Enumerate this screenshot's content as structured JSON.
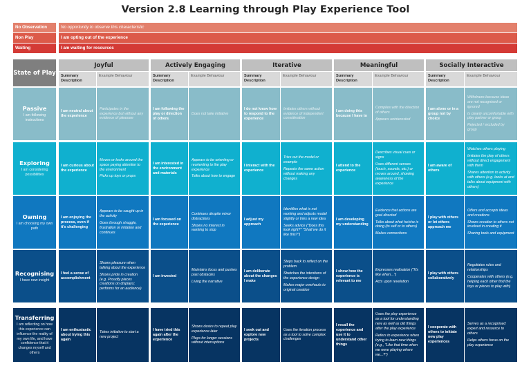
{
  "title": "Version 2.8 Learning through Play Experience Tool",
  "legend": [
    {
      "label": "No Observation",
      "text": "No opportunity to observe this characteristic",
      "color": "#e3806c",
      "italic": true
    },
    {
      "label": "Non Play",
      "text": "I am opting out of the experience",
      "color": "#dc5a49",
      "italic": false
    },
    {
      "label": "Waiting",
      "text": "I am waiting for resources",
      "color": "#d43a35",
      "italic": false
    }
  ],
  "table": {
    "state_header": "State of Play",
    "summary_header": "Summary Description",
    "example_header": "Example Behaviour",
    "columns": [
      "Joyful",
      "Actively Engaging",
      "Iterative",
      "Meaningful",
      "Socially Interactive"
    ],
    "rows": [
      {
        "state": "Passive",
        "state_desc": "I am following instructions",
        "color": "#89bcc9",
        "cells": [
          {
            "summary": "I am neutral about the experience",
            "examples": [
              "Participates in the experience but without any evidence of pleasure"
            ]
          },
          {
            "summary": "I am following the play or direction of others",
            "examples": [
              "Does not take initiative"
            ]
          },
          {
            "summary": "I do not know how to respond to the experience",
            "examples": [
              "Imitates others without evidence of independent consideration"
            ]
          },
          {
            "summary": "I am doing this because I have to",
            "examples": [
              "Complies with the direction of others",
              "Appears uninterested"
            ]
          },
          {
            "summary": "I am alone or in a group not by choice",
            "examples": [
              "Withdraws because ideas are not recognised or ignored",
              "Is clearly uncomfortable with play partner or group",
              "Rejected / excluded by group"
            ]
          }
        ]
      },
      {
        "state": "Exploring",
        "state_desc": "I am considering possibilities",
        "color": "#10b0cf",
        "cells": [
          {
            "summary": "I am curious about the experience",
            "examples": [
              "Moves or looks around the space paying attention to the environment",
              "Picks up toys or props"
            ]
          },
          {
            "summary": "I am interested in the environment and materials",
            "examples": [
              "Appears to be orienting or reorienting to the play experience",
              "Talks about how to engage"
            ]
          },
          {
            "summary": "I interact with the experience",
            "examples": [
              "Tries out the model or example",
              "Repeats the same action without making any changes"
            ]
          },
          {
            "summary": "I attend to the experience",
            "examples": [
              "Describes visual cues or signs",
              "Uses different senses (touch, sounds, etc.) or moves around, showing awareness of the experience"
            ]
          },
          {
            "summary": "I am aware of others",
            "examples": [
              "Watches others playing",
              "Imitates the play of others without direct engagement with them",
              "Shares attention to activity with others (e.g. looks at and talks about equipment with others)"
            ]
          }
        ]
      },
      {
        "state": "Owning",
        "state_desc": "I am choosing my own path",
        "color": "#1078c0",
        "cells": [
          {
            "summary": "I am enjoying the process, even if it's challenging",
            "examples": [
              "Appears to be caught up in the activity",
              "Goes through struggle, frustration or irritation and continues"
            ]
          },
          {
            "summary": "I am focused on the experience",
            "examples": [
              "Continues despite minor distractions",
              "Shows no interest in wanting to stop"
            ]
          },
          {
            "summary": "I adjust my approach",
            "examples": [
              "Identifies what is not working and adjusts model slightly or tries a new idea",
              "Seeks advice (\"Does this look right?\" \"Shall we do it like this?\")"
            ]
          },
          {
            "summary": "I am developing my understanding",
            "examples": [
              "Evidence that actions are goal directed",
              "Talks about what he/she is doing (to self or to others)",
              "Makes connections"
            ]
          },
          {
            "summary": "I play with others or let others approach me",
            "examples": [
              "Offers and accepts ideas and creations",
              "Shows creation to others not involved in creating it",
              "Sharing tools and equipment"
            ]
          }
        ]
      },
      {
        "state": "Recognising",
        "state_desc": "I have new insight",
        "color": "#0b4f8a",
        "cells": [
          {
            "summary": "I feel a sense of accomplishment",
            "examples": [
              "Shows pleasure when talking about the experience",
              "Shows pride in creation (e.g. Proudly places creations on displays; performs for an audience)"
            ]
          },
          {
            "summary": "I am invested",
            "examples": [
              "Maintains focus and pushes past obstacles",
              "Living the narrative"
            ]
          },
          {
            "summary": "I am deliberate about the changes I make",
            "examples": [
              "Steps back to reflect on the problem",
              "Stretches the intentions of the experience design",
              "Makes major overhauls to original creation"
            ]
          },
          {
            "summary": "I show how the experience is relevant to me",
            "examples": [
              "Expresses realisation (\"It's like when...\")",
              "Acts upon revelation"
            ]
          },
          {
            "summary": "I play with others collaboratively",
            "examples": [
              "Negotiates rules and relationships",
              "Cooperates with others (e.g. helping each other find the toys or pieces to play with)"
            ]
          }
        ]
      },
      {
        "state": "Transferring",
        "state_desc": "I am reflecting on how this experience can influence the reality of my own life, and have confidence that it changes myself and others",
        "color": "#073462",
        "cells": [
          {
            "summary": "I am enthusiastic about trying this again",
            "examples": [
              "Takes initiative to start a new project"
            ]
          },
          {
            "summary": "I have tried this again after the experience",
            "examples": [
              "Shows desire to repeat play experience later",
              "Plays for longer sessions without interruptions"
            ]
          },
          {
            "summary": "I seek out and explore new projects",
            "examples": [
              "Uses the iteration process as a tool to solve complex challenges"
            ]
          },
          {
            "summary": "I recall the experience and use it to understand other things",
            "examples": [
              "Uses the play experience as a tool for understanding new as well as old things after the play experience",
              "Refers to experience when trying to learn new things (e.g., \"Like that time when we were playing where we...?\")"
            ]
          },
          {
            "summary": "I cooperate with others to initiate new play experiences",
            "examples": [
              "Serves as a recognised expert and resource to others",
              "Helps others focus on the play experience"
            ]
          }
        ]
      }
    ]
  }
}
